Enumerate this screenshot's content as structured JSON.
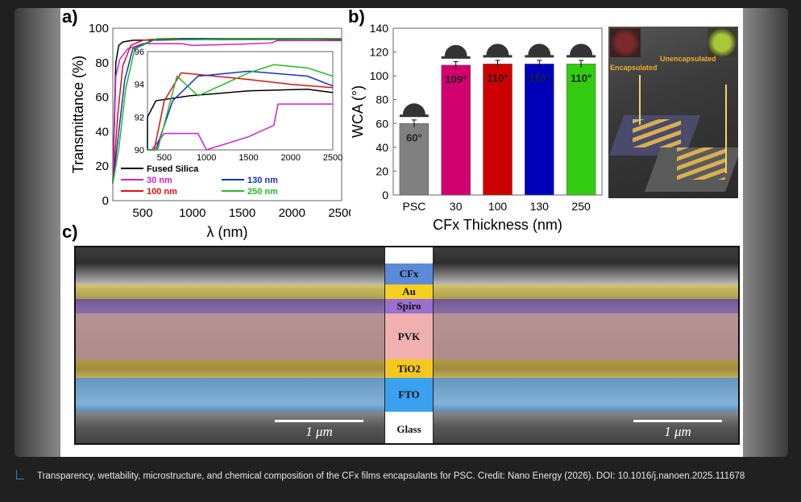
{
  "panel_labels": {
    "a": "a)",
    "b": "b)",
    "c": "c)"
  },
  "chart_data": [
    {
      "type": "line",
      "panel": "a",
      "xlabel": "λ (nm)",
      "ylabel": "Transmittance (%)",
      "xlim": [
        200,
        2500
      ],
      "ylim": [
        0,
        100
      ],
      "xticks": [
        "500",
        "1000",
        "1500",
        "2000",
        "2500"
      ],
      "yticks": [
        "0",
        "20",
        "40",
        "60",
        "80",
        "100"
      ],
      "legend": [
        "Fused Silica",
        "30 nm",
        "100 nm",
        "130 nm",
        "250 nm"
      ],
      "series": [
        {
          "name": "Fused Silica",
          "color": "#000000",
          "x": [
            200,
            230,
            260,
            300,
            400,
            800,
            1500,
            2200,
            2500
          ],
          "y": [
            10,
            80,
            90,
            92,
            93,
            93.3,
            93.6,
            93.7,
            93.5
          ]
        },
        {
          "name": "30 nm",
          "color": "#cc22cc",
          "x": [
            200,
            230,
            270,
            350,
            500,
            900,
            1000,
            1500,
            1800,
            1850,
            2500
          ],
          "y": [
            10,
            72,
            82,
            88,
            91,
            91,
            90,
            90.8,
            91.5,
            92.8,
            92.8
          ]
        },
        {
          "name": "100 nm",
          "color": "#dd1111",
          "x": [
            200,
            250,
            300,
            380,
            500,
            700,
            1500,
            2000,
            2500
          ],
          "y": [
            10,
            50,
            78,
            90,
            93,
            94.7,
            94.3,
            94,
            93.8
          ]
        },
        {
          "name": "130 nm",
          "color": "#1133cc",
          "x": [
            200,
            260,
            320,
            400,
            600,
            900,
            1500,
            2200,
            2500
          ],
          "y": [
            10,
            40,
            70,
            88,
            93,
            94.5,
            94.8,
            94.5,
            93.9
          ]
        },
        {
          "name": "250 nm",
          "color": "#22bb22",
          "x": [
            200,
            260,
            330,
            420,
            650,
            900,
            1500,
            1800,
            2200,
            2500
          ],
          "y": [
            10,
            30,
            65,
            88,
            94.5,
            93.3,
            94.7,
            95.2,
            95,
            94.5
          ]
        }
      ],
      "inset": {
        "xlim": [
          300,
          2500
        ],
        "ylim": [
          90,
          96
        ],
        "xticks": [
          "500",
          "1000",
          "1500",
          "2000",
          "2500"
        ],
        "yticks": [
          "90",
          "92",
          "94",
          "96"
        ]
      }
    },
    {
      "type": "bar",
      "panel": "b",
      "xlabel": "CFx Thickness (nm)",
      "ylabel": "WCA (°)",
      "ylim": [
        0,
        140
      ],
      "yticks": [
        "0",
        "20",
        "40",
        "60",
        "80",
        "100",
        "120",
        "140"
      ],
      "categories": [
        "PSC",
        "30",
        "100",
        "130",
        "250"
      ],
      "values": [
        60,
        109,
        110,
        110,
        110
      ],
      "errors": [
        3,
        3,
        3,
        3,
        3
      ],
      "labels": [
        "60°",
        "109°",
        "110°",
        "110°",
        "110°"
      ],
      "colors": [
        "#808080",
        "#d0006f",
        "#cc0000",
        "#0000bb",
        "#33cc11"
      ]
    }
  ],
  "photo": {
    "labels": [
      "Encapsulated",
      "Unencapsulated"
    ]
  },
  "sem": {
    "layers": [
      "CFx",
      "Au",
      "Spiro",
      "PVK",
      "TiO2",
      "FTO",
      "Glass"
    ],
    "scale_bar": "1 μm"
  },
  "caption": "Transparency, wettability, microstructure, and chemical composition of the CFx films encapsulants for PSC. Credit: Nano Energy (2026). DOI: 10.1016/j.nanoen.2025.111678"
}
